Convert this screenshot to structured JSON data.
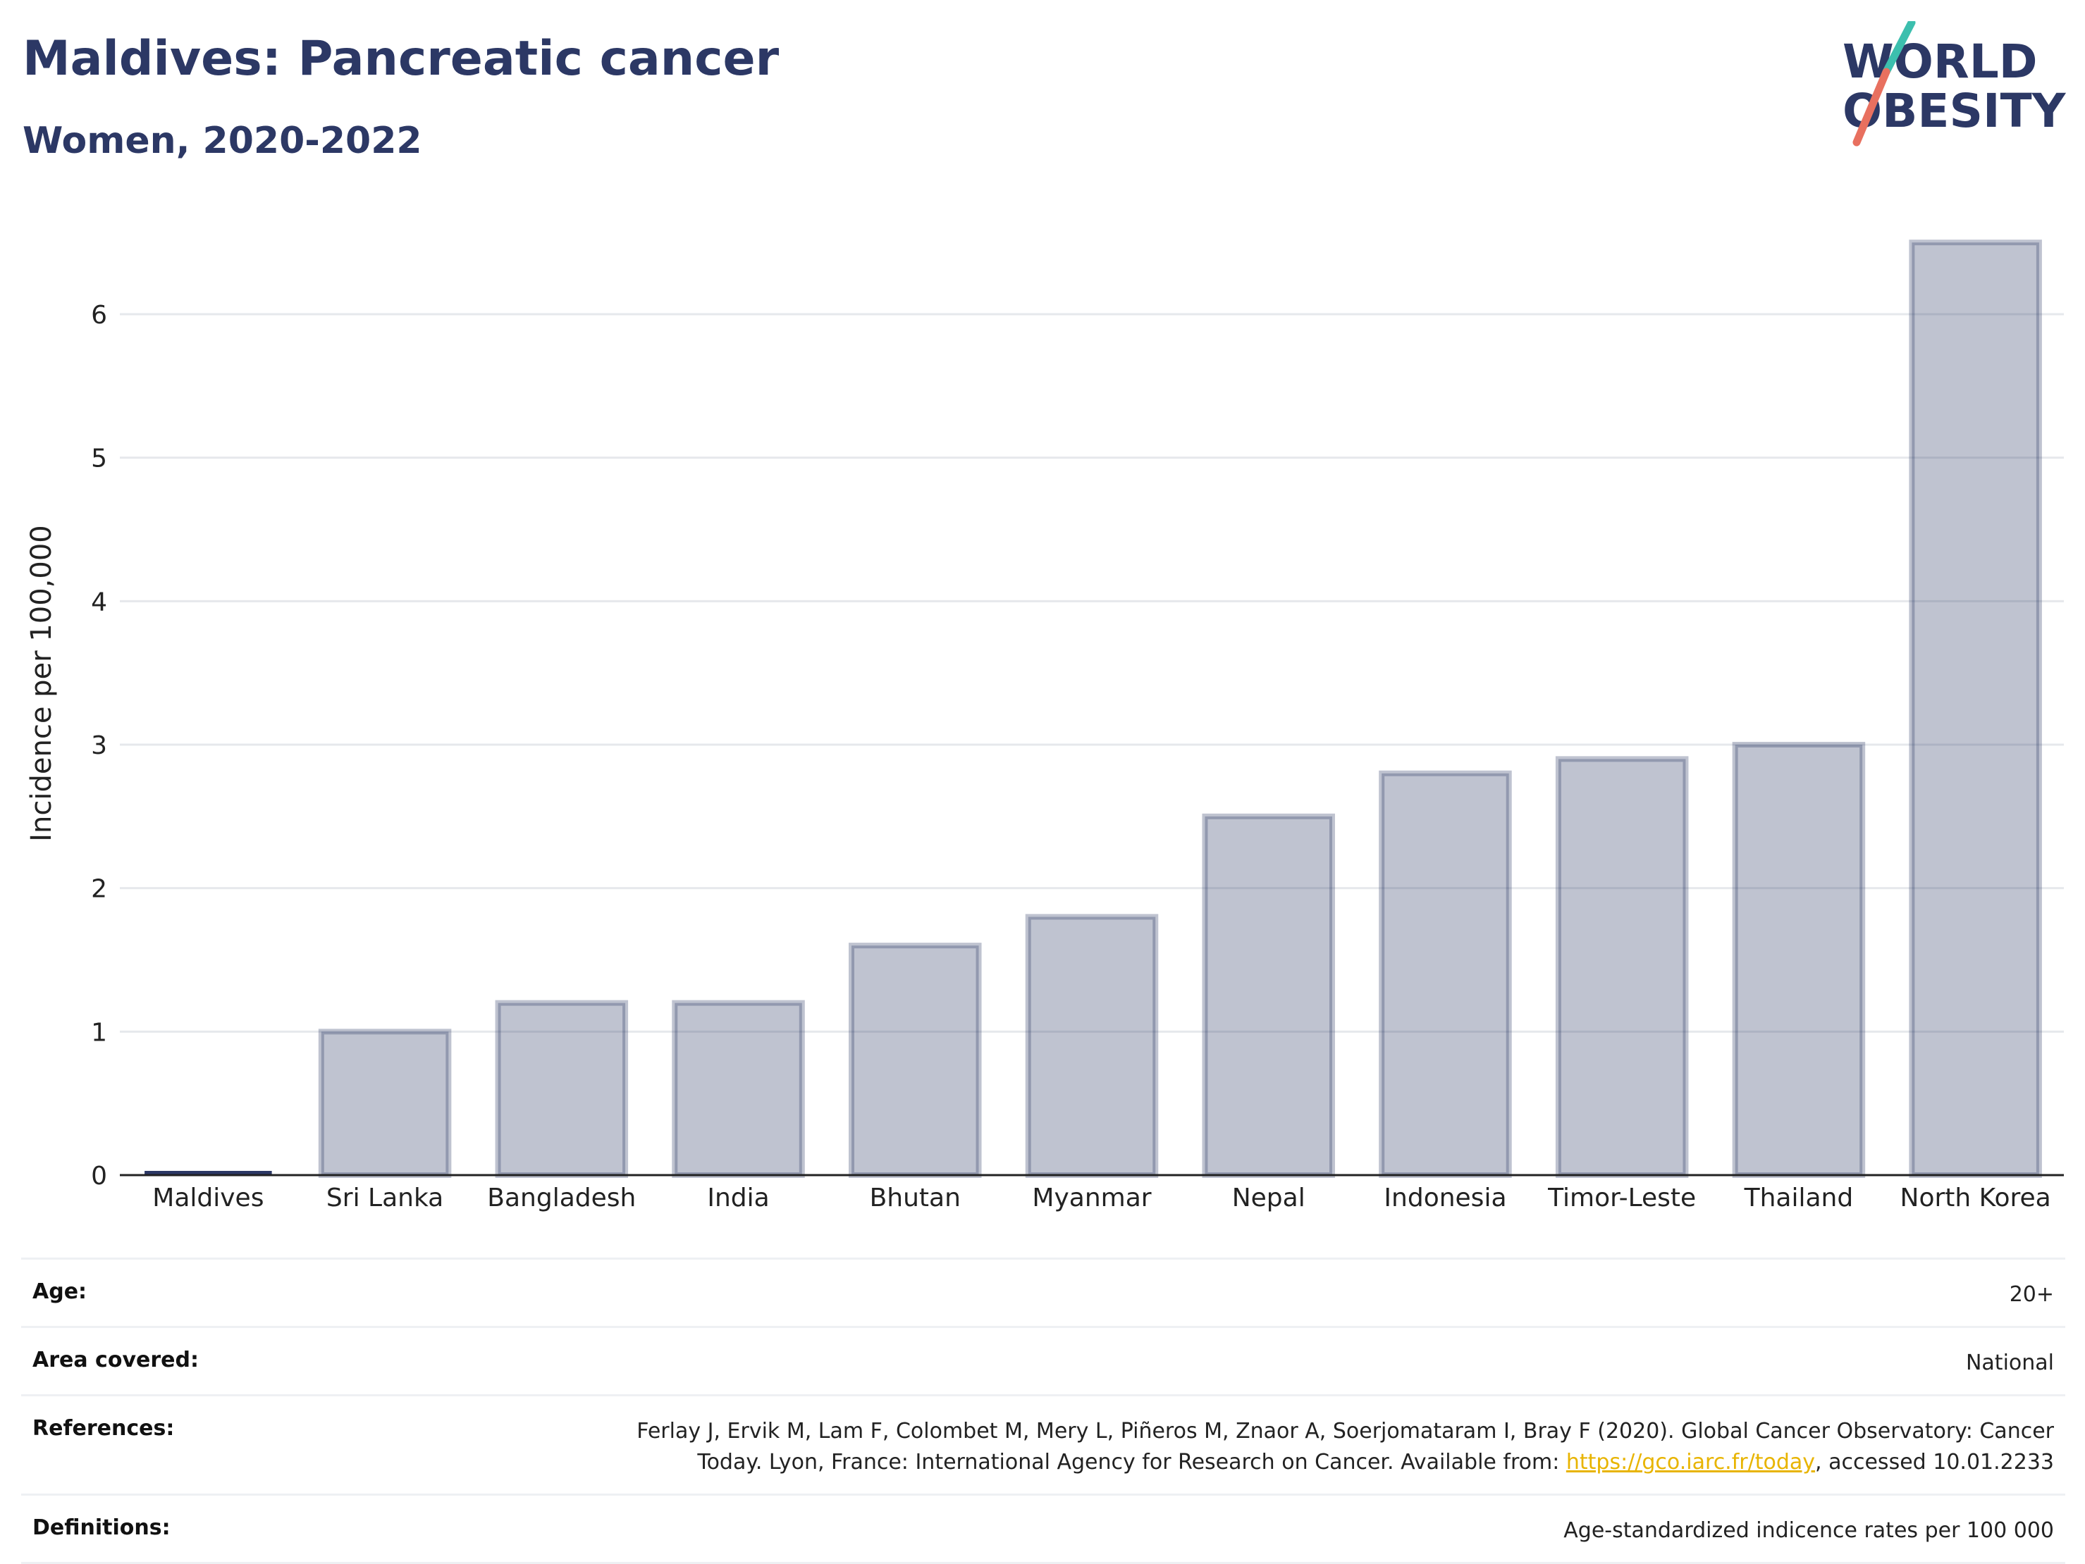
{
  "header": {
    "title": "Maldives: Pancreatic cancer",
    "subtitle": "Women, 2020-2022"
  },
  "logo": {
    "line1": "WORLD",
    "line2": "OBESITY",
    "color_text": "#2c3865",
    "color_slash_top": "#3cbfae",
    "color_slash_bottom": "#e8705f"
  },
  "colors": {
    "highlight_bar": "#2c3865",
    "bar_fill": "#2c3865",
    "bar_stroke": "#2c3865",
    "grid": "#e6e8ec",
    "axis": "#222222"
  },
  "chart_data": {
    "type": "bar",
    "categories": [
      "Maldives",
      "Sri Lanka",
      "Bangladesh",
      "India",
      "Bhutan",
      "Myanmar",
      "Nepal",
      "Indonesia",
      "Timor-Leste",
      "Thailand",
      "North Korea"
    ],
    "values": [
      0.0,
      1.0,
      1.2,
      1.2,
      1.6,
      1.8,
      2.5,
      2.8,
      2.9,
      3.0,
      6.5
    ],
    "highlight": "Maldives",
    "ylabel": "Incidence per 100,000",
    "yticks": [
      "0",
      "1",
      "2",
      "3",
      "4",
      "5",
      "6"
    ],
    "ylim": [
      0,
      6.6
    ],
    "grid": true
  },
  "meta": {
    "age_label": "Age:",
    "age_value": "20+",
    "area_label": "Area covered:",
    "area_value": "National",
    "references_label": "References:",
    "references_text_1": "Ferlay J, Ervik M, Lam F, Colombet M, Mery L, Piñeros M, Znaor A, Soerjomataram I, Bray F (2020). Global Cancer Observatory: Cancer Today. Lyon, France: International Agency for Research on Cancer. Available from: ",
    "references_link": "https://gco.iarc.fr/today",
    "references_text_2": ", accessed 10.01.2233",
    "definitions_label": "Definitions:",
    "definitions_value": "Age-standardized indicence rates per 100 000"
  }
}
